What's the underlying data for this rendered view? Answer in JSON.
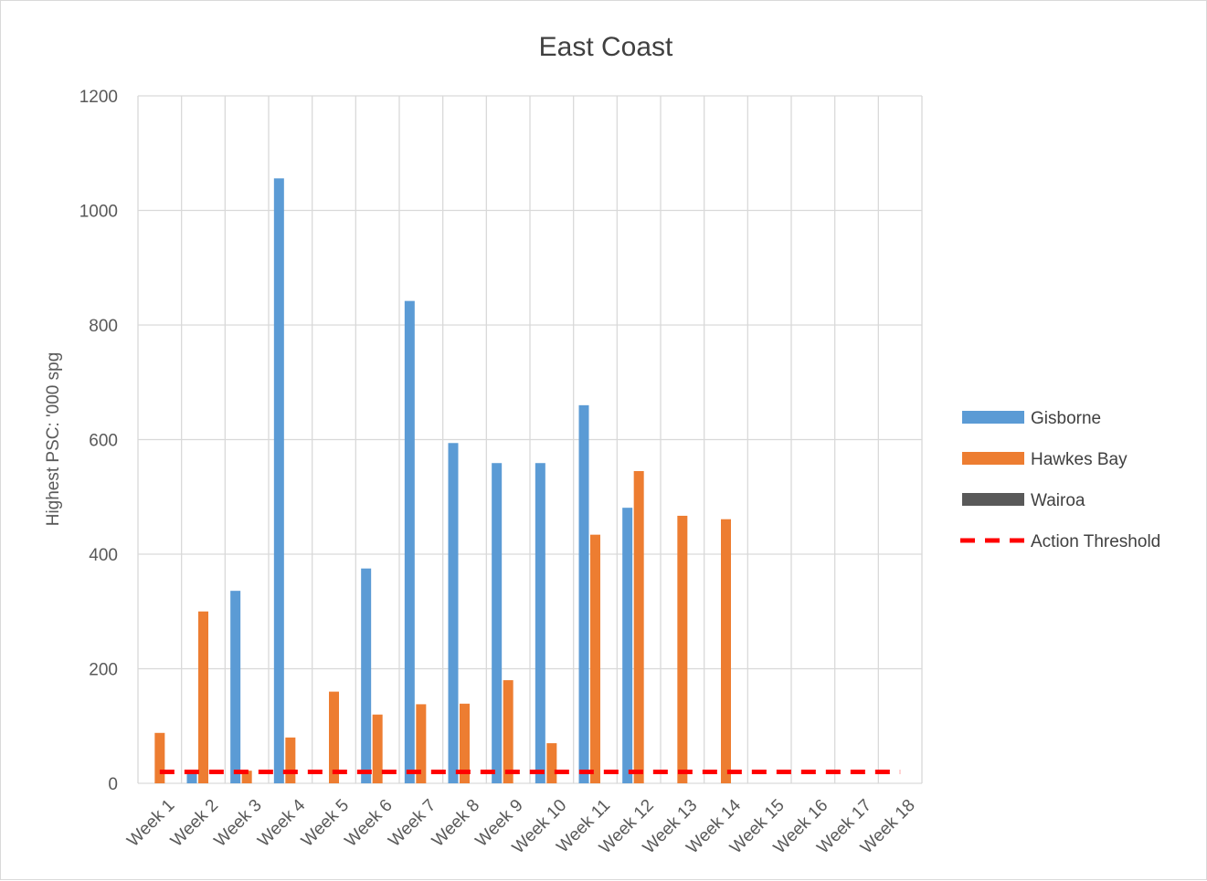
{
  "chart_data": {
    "type": "bar",
    "title": "East Coast",
    "ylabel": "Highest PSC: '000 spg",
    "xlabel": "",
    "ylim": [
      0,
      1200
    ],
    "yticks": [
      0,
      200,
      400,
      600,
      800,
      1000,
      1200
    ],
    "grid": true,
    "legend_position": "right",
    "categories": [
      "Week 1",
      "Week 2",
      "Week 3",
      "Week 4",
      "Week 5",
      "Week 6",
      "Week 7",
      "Week 8",
      "Week 9",
      "Week 10",
      "Week 11",
      "Week 12",
      "Week 13",
      "Week 14",
      "Week 15",
      "Week 16",
      "Week 17",
      "Week 18"
    ],
    "series": [
      {
        "name": "Gisborne",
        "kind": "bar",
        "color": "#5b9bd5",
        "values": [
          null,
          22,
          336,
          1056,
          null,
          375,
          842,
          594,
          559,
          559,
          660,
          481,
          null,
          null,
          null,
          null,
          null,
          null
        ]
      },
      {
        "name": "Hawkes Bay",
        "kind": "bar",
        "color": "#ed7d31",
        "values": [
          88,
          300,
          22,
          80,
          160,
          120,
          138,
          139,
          180,
          70,
          434,
          545,
          467,
          461,
          null,
          null,
          null,
          null
        ]
      },
      {
        "name": "Wairoa",
        "kind": "bar",
        "color": "#595959",
        "values": [
          null,
          null,
          null,
          null,
          null,
          null,
          null,
          null,
          null,
          null,
          null,
          null,
          null,
          null,
          null,
          null,
          null,
          null
        ]
      },
      {
        "name": "Action Threshold",
        "kind": "line",
        "style": "dashed",
        "color": "#ff0000",
        "values": [
          20,
          20,
          20,
          20,
          20,
          20,
          20,
          20,
          20,
          20,
          20,
          20,
          20,
          20,
          20,
          20,
          20,
          20
        ]
      }
    ]
  }
}
